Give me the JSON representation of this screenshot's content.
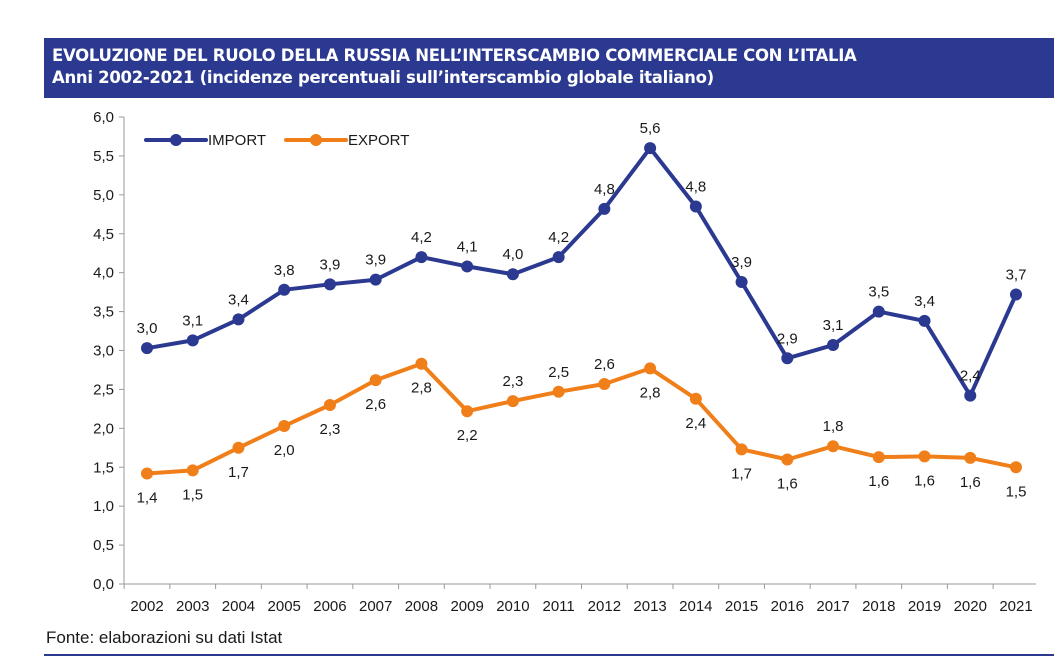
{
  "title": {
    "line1": "EVOLUZIONE DEL RUOLO DELLA RUSSIA NELL’INTERSCAMBIO COMMERCIALE CON L’ITALIA",
    "line2": "Anni 2002-2021 (incidenze percentuali sull’interscambio globale italiano)"
  },
  "source": "Fonte: elaborazioni su dati Istat",
  "colors": {
    "band": "#2b3990",
    "import": "#2b3990",
    "export": "#f07f1a"
  },
  "chart_data": {
    "type": "line",
    "title": "EVOLUZIONE DEL RUOLO DELLA RUSSIA NELL’INTERSCAMBIO COMMERCIALE CON L’ITALIA",
    "subtitle": "Anni 2002-2021 (incidenze percentuali sull’interscambio globale italiano)",
    "xlabel": "",
    "ylabel": "",
    "ylim": [
      0,
      6
    ],
    "yticks": [
      "0,0",
      "0,5",
      "1,0",
      "1,5",
      "2,0",
      "2,5",
      "3,0",
      "3,5",
      "4,0",
      "4,5",
      "5,0",
      "5,5",
      "6,0"
    ],
    "ytick_values": [
      0,
      0.5,
      1,
      1.5,
      2,
      2.5,
      3,
      3.5,
      4,
      4.5,
      5,
      5.5,
      6
    ],
    "grid": false,
    "legend_position": "top-left",
    "x": [
      "2002",
      "2003",
      "2004",
      "2005",
      "2006",
      "2007",
      "2008",
      "2009",
      "2010",
      "2011",
      "2012",
      "2013",
      "2014",
      "2015",
      "2016",
      "2017",
      "2018",
      "2019",
      "2020",
      "2021"
    ],
    "series": [
      {
        "name": "IMPORT",
        "color": "#2b3990",
        "values": [
          3.03,
          3.13,
          3.4,
          3.78,
          3.85,
          3.91,
          4.2,
          4.08,
          3.98,
          4.2,
          4.82,
          5.6,
          4.85,
          3.88,
          2.9,
          3.07,
          3.5,
          3.38,
          2.42,
          3.72
        ],
        "labels": [
          "3,0",
          "3,1",
          "3,4",
          "3,8",
          "3,9",
          "3,9",
          "4,2",
          "4,1",
          "4,0",
          "4,2",
          "4,8",
          "5,6",
          "4,8",
          "3,9",
          "2,9",
          "3,1",
          "3,5",
          "3,4",
          "2,4",
          "3,7"
        ],
        "label_positions": [
          "above",
          "above",
          "above",
          "above",
          "above",
          "above",
          "above",
          "above",
          "above",
          "above",
          "above",
          "above",
          "above",
          "above",
          "above",
          "above",
          "above",
          "above",
          "above",
          "above"
        ]
      },
      {
        "name": "EXPORT",
        "color": "#f07f1a",
        "values": [
          1.42,
          1.46,
          1.75,
          2.03,
          2.3,
          2.62,
          2.83,
          2.22,
          2.35,
          2.47,
          2.57,
          2.77,
          2.38,
          1.73,
          1.6,
          1.77,
          1.63,
          1.64,
          1.62,
          1.5
        ],
        "labels": [
          "1,4",
          "1,5",
          "1,7",
          "2,0",
          "2,3",
          "2,6",
          "2,8",
          "2,2",
          "2,3",
          "2,5",
          "2,6",
          "2,8",
          "2,4",
          "1,7",
          "1,6",
          "1,8",
          "1,6",
          "1,6",
          "1,6",
          "1,5"
        ],
        "label_positions": [
          "below",
          "below",
          "below",
          "below",
          "below",
          "below",
          "below",
          "below",
          "above",
          "above",
          "above",
          "below",
          "below",
          "below",
          "below",
          "above",
          "below",
          "below",
          "below",
          "below"
        ]
      }
    ]
  }
}
